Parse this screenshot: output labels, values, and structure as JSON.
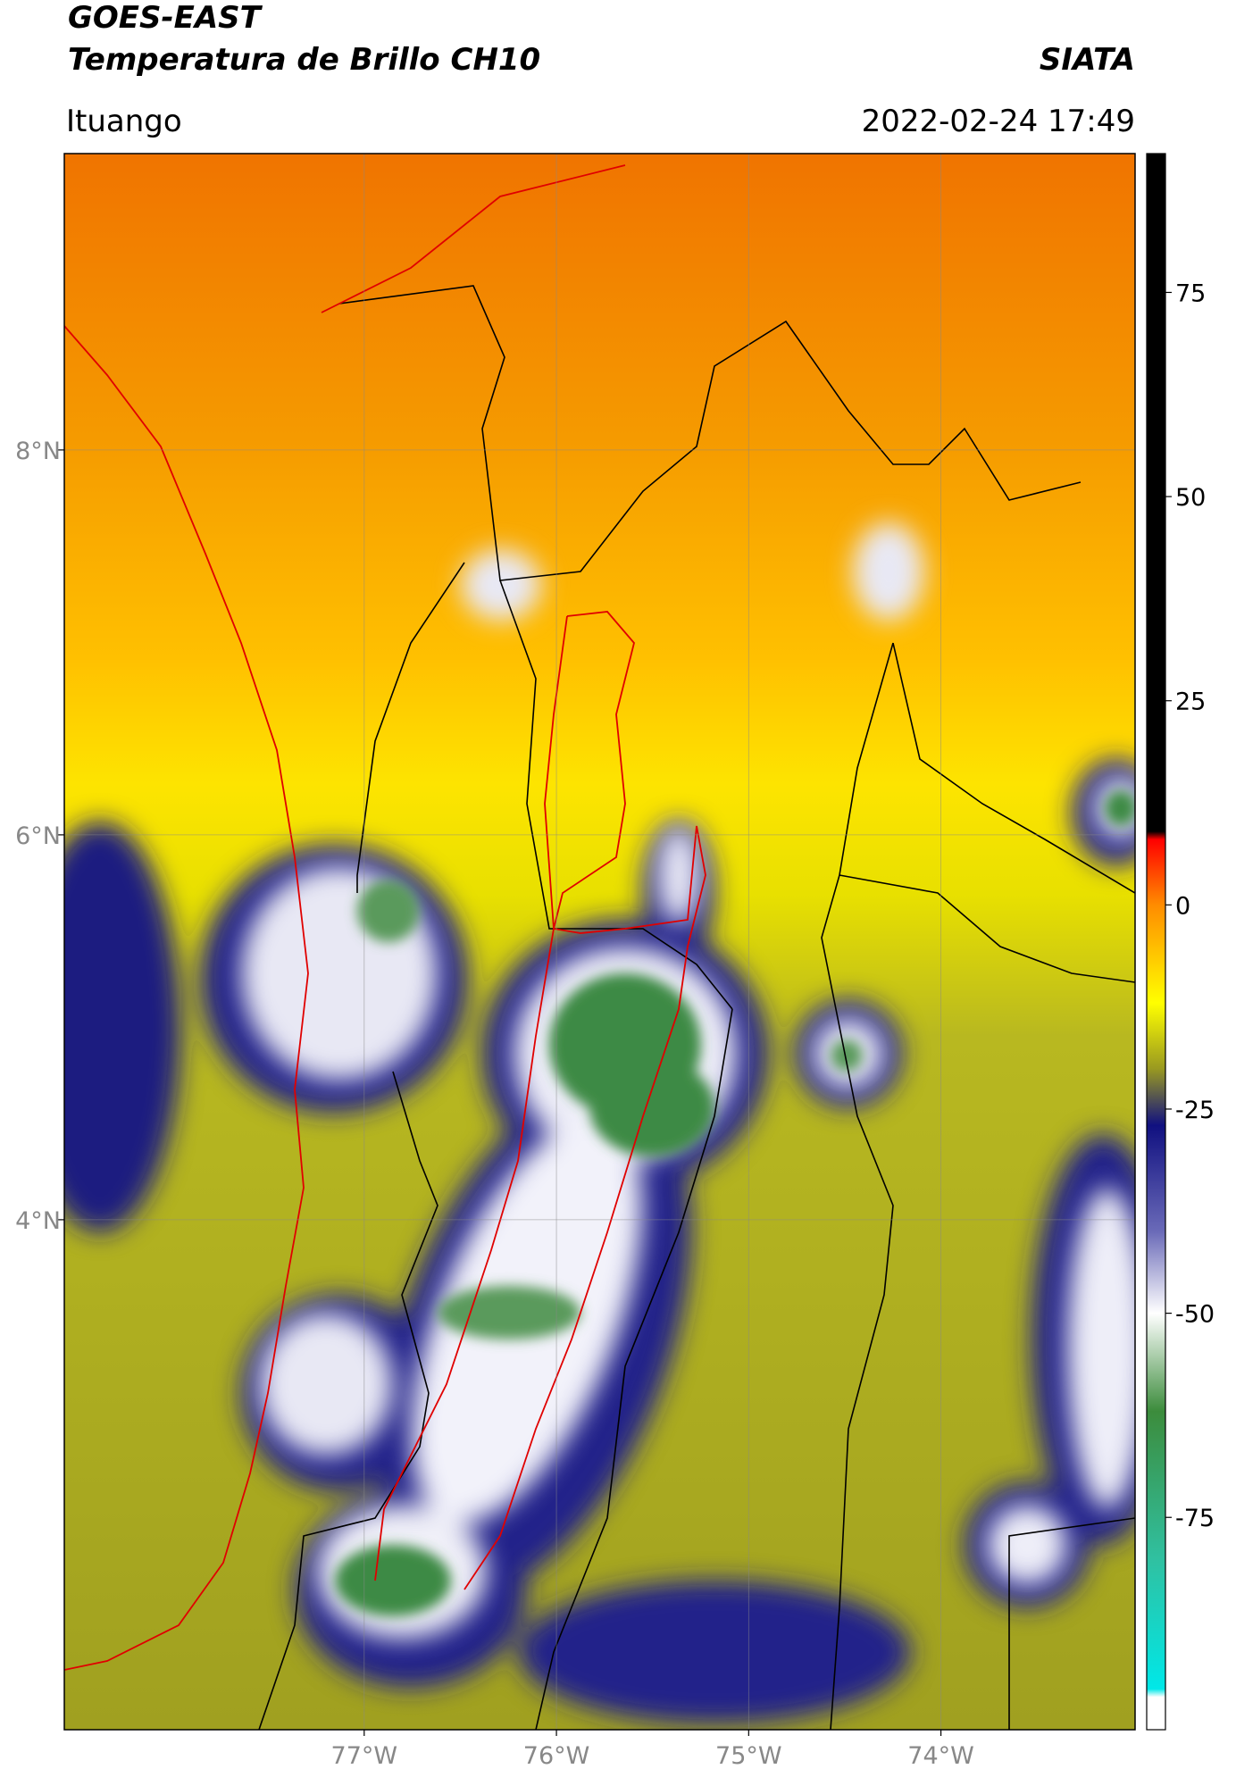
{
  "map": {
    "title": "GOES-EAST",
    "subtitle": "Temperatura de Brillo CH10",
    "source": "SIATA",
    "location": "Ituango",
    "timestamp": "2022-02-24 17:49",
    "xlim": [
      -78.56,
      -72.99
    ],
    "ylim": [
      1.35,
      9.54
    ],
    "xticks": [
      {
        "value": -77,
        "label": "77°W"
      },
      {
        "value": -76,
        "label": "76°W"
      },
      {
        "value": -75,
        "label": "75°W"
      },
      {
        "value": -74,
        "label": "74°W"
      }
    ],
    "yticks": [
      {
        "value": 8,
        "label": "8°N"
      },
      {
        "value": 6,
        "label": "6°N"
      },
      {
        "value": 4,
        "label": "4°N"
      }
    ],
    "colorbar": {
      "lim": [
        -101,
        92
      ],
      "ticks": [
        75,
        50,
        25,
        0,
        -25,
        -50,
        -75
      ],
      "stops": [
        {
          "value": 92,
          "color": "#000000"
        },
        {
          "value": 9,
          "color": "#000000"
        },
        {
          "value": 8,
          "color": "#ff0000"
        },
        {
          "value": 0,
          "color": "#ff8c00"
        },
        {
          "value": -12,
          "color": "#ffff00"
        },
        {
          "value": -20,
          "color": "#9a9a20"
        },
        {
          "value": -27,
          "color": "#101080"
        },
        {
          "value": -40,
          "color": "#6a6ab8"
        },
        {
          "value": -50,
          "color": "#ffffff"
        },
        {
          "value": -62,
          "color": "#3c8c3c"
        },
        {
          "value": -80,
          "color": "#30c0a0"
        },
        {
          "value": -96,
          "color": "#00e8e8"
        },
        {
          "value": -97,
          "color": "#ffffff"
        },
        {
          "value": -101,
          "color": "#ffffff"
        }
      ]
    }
  }
}
